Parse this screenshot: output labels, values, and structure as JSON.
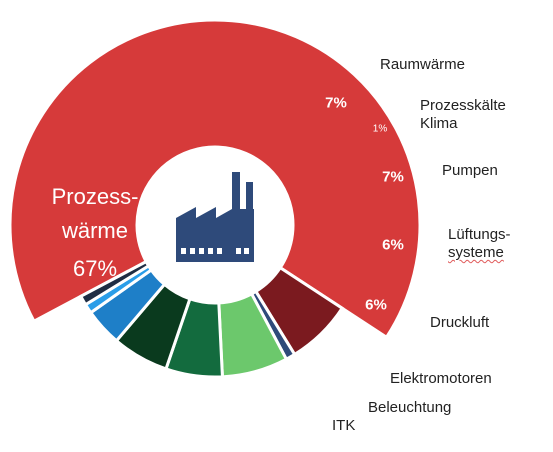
{
  "chart_data": {
    "type": "pie",
    "title": "",
    "categories": [
      "Prozesswärme",
      "Raumwärme",
      "Prozesskälte Klima",
      "Pumpen",
      "Lüftungssysteme",
      "Druckluft",
      "Elektromotoren",
      "Beleuchtung",
      "ITK"
    ],
    "values": [
      67,
      7,
      1,
      7,
      6,
      6,
      4,
      1,
      1
    ],
    "value_labels": [
      "67%",
      "7%",
      "1%",
      "7%",
      "6%",
      "6%",
      "4%",
      "1%",
      "1%"
    ],
    "colors": [
      "#D63A3A",
      "#7B1A1F",
      "#2E4A7A",
      "#6CC86C",
      "#136B3E",
      "#0A3A1E",
      "#1E7FC8",
      "#2A9DE8",
      "#1F2D44"
    ],
    "legend": "labels beside slices",
    "center_icon": "factory-icon"
  },
  "labels": {
    "prozesswaerme_1": "Prozess-",
    "prozesswaerme_2": "wärme",
    "prozesswaerme_pct": "67%",
    "raumwaerme": "Raumwärme",
    "prozesskaelte_1": "Prozesskälte",
    "prozesskaelte_2": "Klima",
    "pumpen": "Pumpen",
    "lueftung_1": "Lüftungs-",
    "lueftung_2": "systeme",
    "druckluft": "Druckluft",
    "elektromotoren": "Elektromotoren",
    "beleuchtung": "Beleuchtung",
    "itk": "ITK"
  }
}
